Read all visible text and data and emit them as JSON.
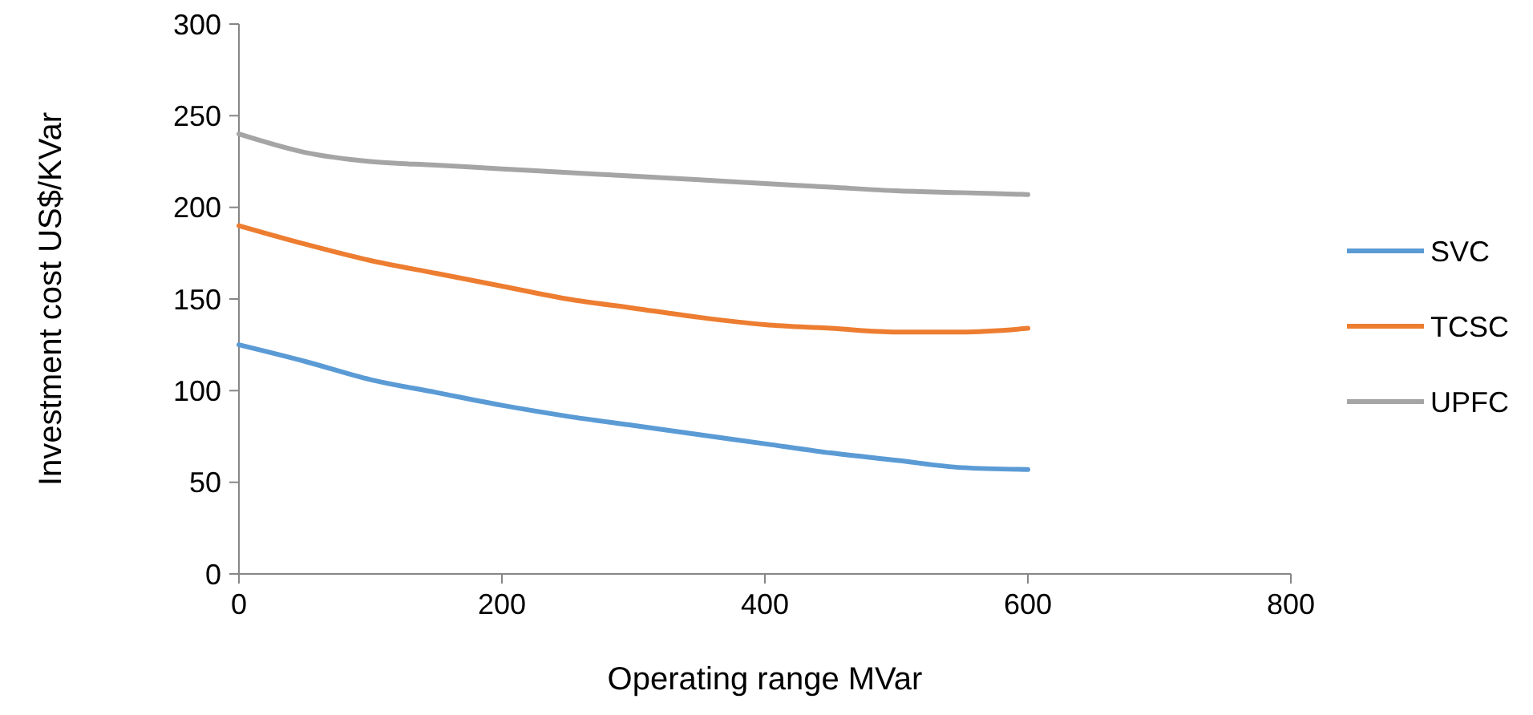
{
  "chart_data": {
    "type": "line",
    "xlabel": "Operating range MVar",
    "ylabel": "Investment cost US$/KVar",
    "x": [
      0,
      50,
      100,
      150,
      200,
      250,
      300,
      350,
      400,
      450,
      500,
      550,
      600
    ],
    "series": [
      {
        "name": "SVC",
        "color": "#5b9bd5",
        "values": [
          125,
          116,
          106,
          99,
          92,
          86,
          81,
          76,
          71,
          66,
          62,
          58,
          57
        ]
      },
      {
        "name": "TCSC",
        "color": "#ed7d31",
        "values": [
          190,
          180,
          171,
          164,
          157,
          150,
          145,
          140,
          136,
          134,
          132,
          132,
          134
        ]
      },
      {
        "name": "UPFC",
        "color": "#a5a5a5",
        "values": [
          240,
          230,
          225,
          223,
          221,
          219,
          217,
          215,
          213,
          211,
          209,
          208,
          207
        ]
      }
    ],
    "xlim": [
      0,
      800
    ],
    "xticks": [
      0,
      200,
      400,
      600,
      800
    ],
    "ylim": [
      0,
      300
    ],
    "yticks": [
      0,
      50,
      100,
      150,
      200,
      250,
      300
    ],
    "grid": false,
    "legend": "right",
    "marker": "none",
    "line_style": "solid"
  }
}
